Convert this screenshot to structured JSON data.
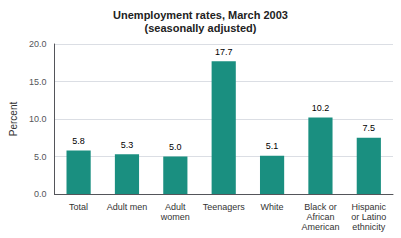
{
  "chart_data": {
    "type": "bar",
    "title": "Unemployment rates, March 2003\n(seasonally adjusted)",
    "categories": [
      "Total",
      "Adult men",
      "Adult\nwomen",
      "Teenagers",
      "White",
      "Black or\nAfrican\nAmerican",
      "Hispanic\nor Latino\nethnicity"
    ],
    "values": [
      5.8,
      5.3,
      5.0,
      17.7,
      5.1,
      10.2,
      7.5
    ],
    "value_labels": [
      "5.8",
      "5.3",
      "5.0",
      "17.7",
      "5.1",
      "10.2",
      "7.5"
    ],
    "data_labels": true,
    "color": "#1a8f80",
    "ylabel": "Percent",
    "ylim": [
      0,
      20.0
    ],
    "yticks": [
      {
        "value": 0.0,
        "label": "0.0"
      },
      {
        "value": 5.0,
        "label": "5.0"
      },
      {
        "value": 10.0,
        "label": "10.0"
      },
      {
        "value": 15.0,
        "label": "15.0"
      },
      {
        "value": 20.0,
        "label": "20.0"
      }
    ],
    "grid": true
  }
}
